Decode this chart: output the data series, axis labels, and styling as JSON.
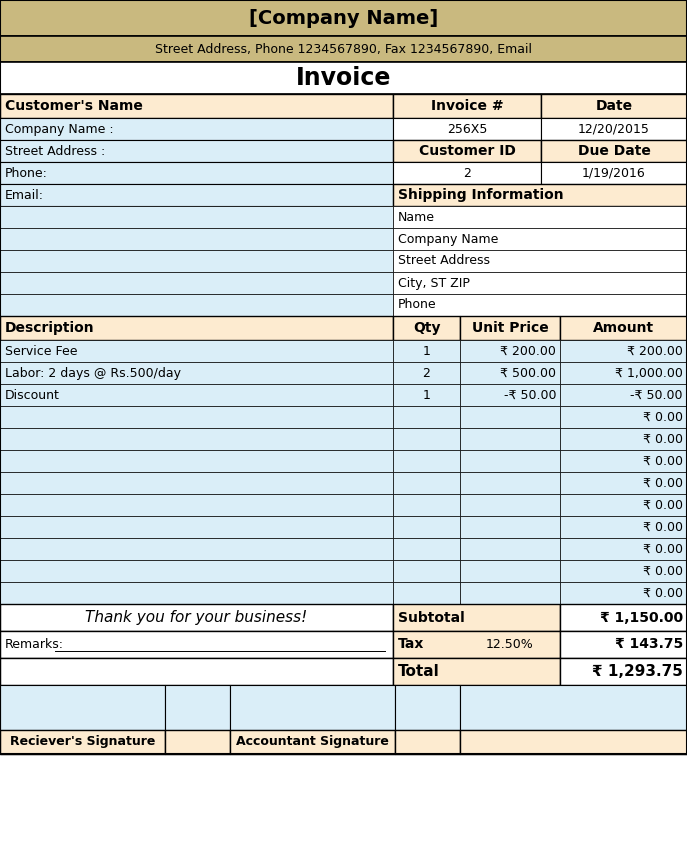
{
  "company_name": "[Company Name]",
  "company_address": "Street Address, Phone 1234567890, Fax 1234567890, Email",
  "invoice_title": "Invoice",
  "customer_label": "Customer's Name",
  "customer_fields": [
    "Company Name :",
    "Street Address :",
    "Phone:",
    "Email:"
  ],
  "invoice_num_label": "Invoice #",
  "invoice_num_value": "256X5",
  "date_label": "Date",
  "date_value": "12/20/2015",
  "customer_id_label": "Customer ID",
  "customer_id_value": "2",
  "due_date_label": "Due Date",
  "due_date_value": "1/19/2016",
  "shipping_label": "Shipping Information",
  "shipping_fields": [
    "Name",
    "Company Name",
    "Street Address",
    "City, ST ZIP",
    "Phone"
  ],
  "desc_label": "Description",
  "qty_label": "Qty",
  "unit_price_label": "Unit Price",
  "amount_label": "Amount",
  "line_items": [
    {
      "desc": "Service Fee",
      "qty": "1",
      "unit_price": "₹ 200.00",
      "amount": "₹ 200.00"
    },
    {
      "desc": "Labor: 2 days @ Rs.500/day",
      "qty": "2",
      "unit_price": "₹ 500.00",
      "amount": "₹ 1,000.00"
    },
    {
      "desc": "Discount",
      "qty": "1",
      "unit_price": "-₹ 50.00",
      "amount": "-₹ 50.00"
    }
  ],
  "empty_amounts": [
    "₹ 0.00",
    "₹ 0.00",
    "₹ 0.00",
    "₹ 0.00",
    "₹ 0.00",
    "₹ 0.00",
    "₹ 0.00",
    "₹ 0.00",
    "₹ 0.00"
  ],
  "thank_you": "Thank you for your business!",
  "subtotal_label": "Subtotal",
  "subtotal_value": "₹ 1,150.00",
  "tax_label": "Tax",
  "tax_rate": "12.50%",
  "tax_value": "₹ 143.75",
  "total_label": "Total",
  "total_value": "₹ 1,293.75",
  "remarks_label": "Remarks:",
  "receiver_sig": "Reciever's Signature",
  "accountant_sig": "Accountant Signature",
  "color_header_bg": "#C9B97F",
  "color_light_blue": "#DAEEF8",
  "color_light_peach": "#FDEBD0",
  "color_white": "#FFFFFF",
  "color_black": "#000000",
  "color_border": "#000000"
}
